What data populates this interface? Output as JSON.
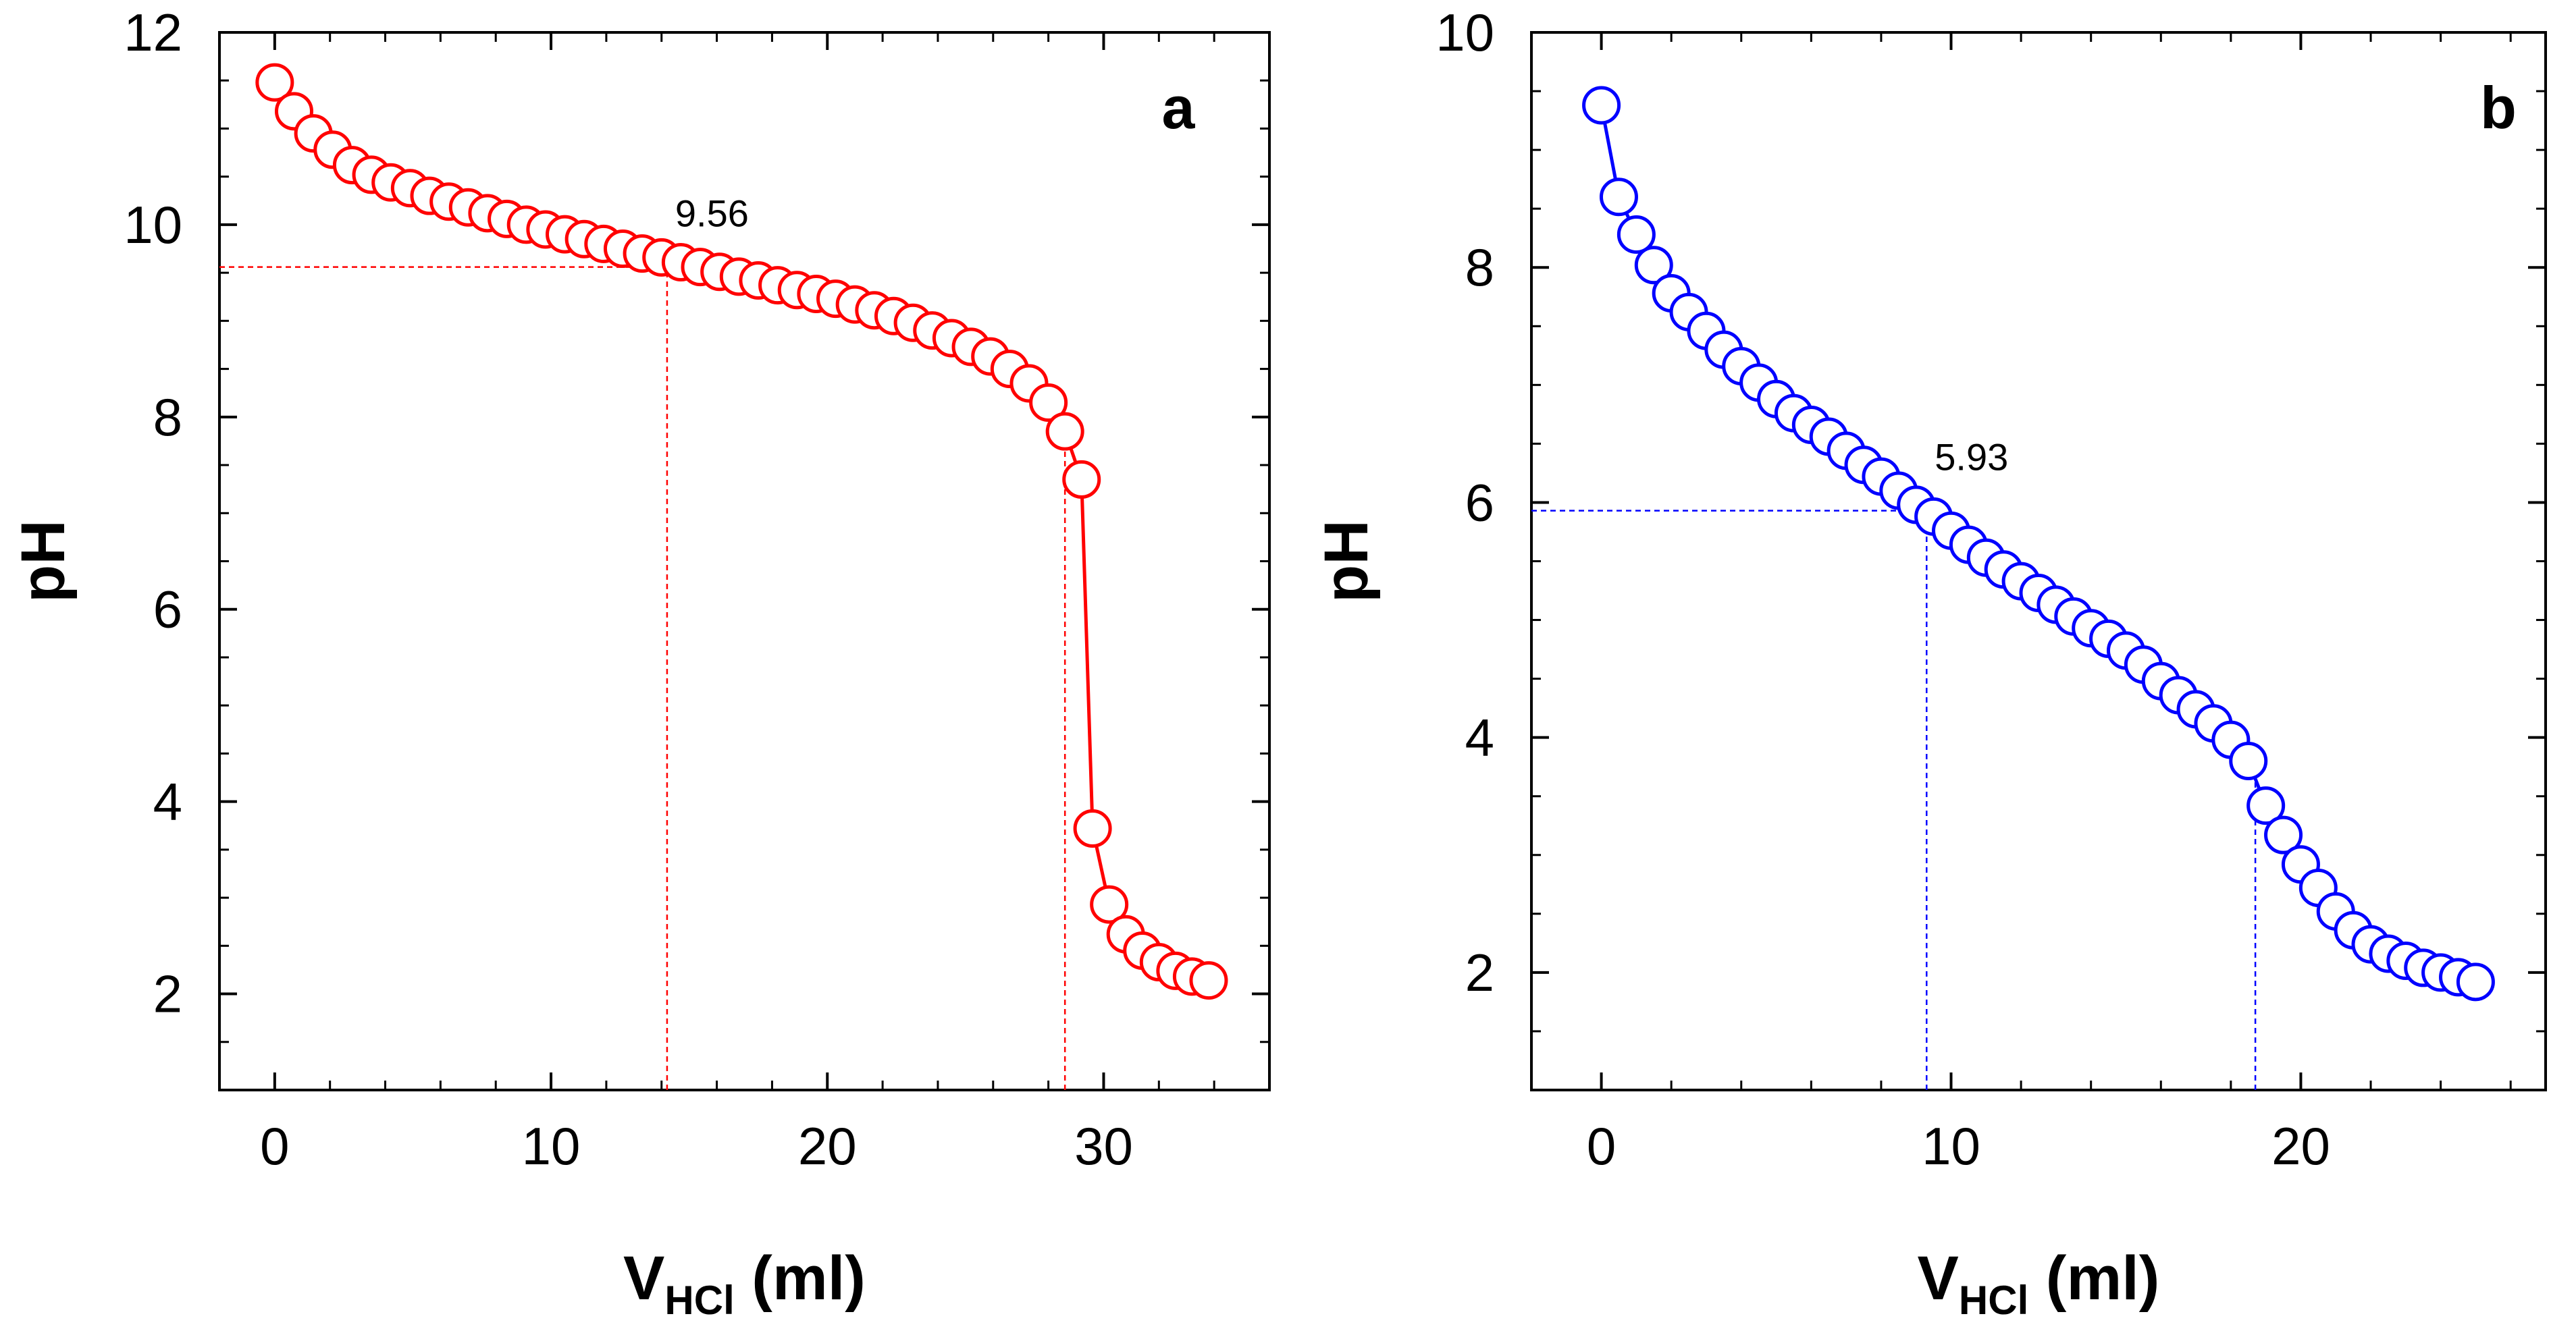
{
  "chart_data": [
    {
      "type": "line",
      "panel": "a",
      "color": "#ff0000",
      "xlabel": {
        "main": "V",
        "sub": "HCl",
        "unit": "(ml)"
      },
      "ylabel": "pH",
      "xlim": [
        -2,
        36
      ],
      "ylim": [
        1,
        12
      ],
      "xticks": [
        0,
        10,
        20,
        30
      ],
      "yticks": [
        2,
        4,
        6,
        8,
        10,
        12
      ],
      "annotation": {
        "text": "9.56",
        "x": 14.2,
        "y": 9.56
      },
      "ref_lines": {
        "x": [
          14.2,
          28.6
        ],
        "y": [
          9.56
        ]
      },
      "x": [
        0,
        0.7,
        1.4,
        2.1,
        2.8,
        3.5,
        4.2,
        4.9,
        5.6,
        6.3,
        7,
        7.7,
        8.4,
        9.1,
        9.8,
        10.5,
        11.2,
        11.9,
        12.6,
        13.3,
        14,
        14.7,
        15.4,
        16.1,
        16.8,
        17.5,
        18.2,
        18.9,
        19.6,
        20.3,
        21,
        21.7,
        22.4,
        23.1,
        23.8,
        24.5,
        25.2,
        25.9,
        26.6,
        27.3,
        28,
        28.6,
        29.2,
        29.6,
        30.2,
        30.8,
        31.4,
        32,
        32.6,
        33.2,
        33.8
      ],
      "y": [
        11.48,
        11.18,
        10.95,
        10.78,
        10.62,
        10.52,
        10.44,
        10.38,
        10.3,
        10.24,
        10.18,
        10.12,
        10.06,
        10.0,
        9.95,
        9.9,
        9.85,
        9.8,
        9.75,
        9.7,
        9.66,
        9.61,
        9.56,
        9.51,
        9.46,
        9.42,
        9.37,
        9.32,
        9.28,
        9.23,
        9.17,
        9.11,
        9.05,
        8.98,
        8.9,
        8.82,
        8.73,
        8.63,
        8.5,
        8.35,
        8.15,
        7.85,
        7.35,
        3.72,
        2.93,
        2.62,
        2.45,
        2.33,
        2.24,
        2.18,
        2.14
      ]
    },
    {
      "type": "line",
      "panel": "b",
      "color": "#0000ff",
      "xlabel": {
        "main": "V",
        "sub": "HCl",
        "unit": "(ml)"
      },
      "ylabel": "pH",
      "xlim": [
        -2,
        27
      ],
      "ylim": [
        1,
        10
      ],
      "xticks": [
        0,
        10,
        20
      ],
      "yticks": [
        2,
        4,
        6,
        8,
        10
      ],
      "annotation": {
        "text": "5.93",
        "x": 9.3,
        "y": 5.93
      },
      "ref_lines": {
        "x": [
          9.3,
          18.7
        ],
        "y": [
          5.93
        ]
      },
      "x": [
        0,
        0.5,
        1.0,
        1.5,
        2.0,
        2.5,
        3.0,
        3.5,
        4.0,
        4.5,
        5.0,
        5.5,
        6.0,
        6.5,
        7.0,
        7.5,
        8.0,
        8.5,
        9.0,
        9.5,
        10.0,
        10.5,
        11.0,
        11.5,
        12.0,
        12.5,
        13.0,
        13.5,
        14.0,
        14.5,
        15.0,
        15.5,
        16.0,
        16.5,
        17.0,
        17.5,
        18.0,
        18.5,
        19.0,
        19.5,
        20.0,
        20.5,
        21.0,
        21.5,
        22.0,
        22.5,
        23.0,
        23.5,
        24.0,
        24.5,
        25.0
      ],
      "y": [
        9.38,
        8.6,
        8.28,
        8.02,
        7.78,
        7.62,
        7.46,
        7.3,
        7.16,
        7.02,
        6.88,
        6.76,
        6.66,
        6.56,
        6.44,
        6.32,
        6.22,
        6.1,
        5.98,
        5.88,
        5.76,
        5.64,
        5.53,
        5.43,
        5.33,
        5.23,
        5.13,
        5.03,
        4.93,
        4.84,
        4.74,
        4.62,
        4.48,
        4.36,
        4.24,
        4.12,
        3.98,
        3.8,
        3.42,
        3.17,
        2.92,
        2.72,
        2.52,
        2.36,
        2.24,
        2.16,
        2.1,
        2.04,
        2.0,
        1.96,
        1.92
      ]
    }
  ]
}
